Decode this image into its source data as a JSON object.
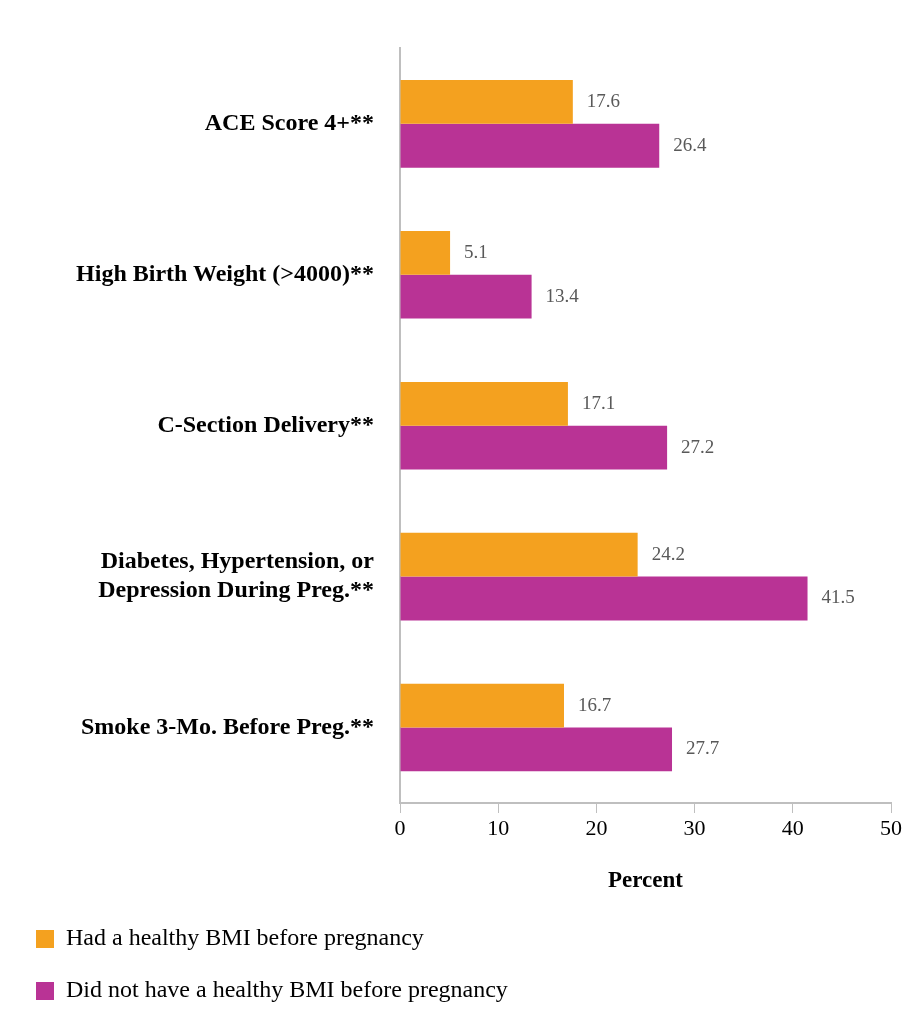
{
  "chart_data": {
    "type": "bar",
    "orientation": "horizontal",
    "xlabel": "Percent",
    "categories": [
      "ACE Score 4+**",
      "High Birth Weight (>4000)**",
      "C-Section Delivery**",
      "Diabetes, Hypertension, or Depression During Preg.**",
      "Smoke 3-Mo. Before Preg.**"
    ],
    "series": [
      {
        "name": "Had a healthy BMI before pregnancy",
        "color": "#f4a11f",
        "values": [
          17.6,
          5.1,
          17.1,
          24.2,
          16.7
        ]
      },
      {
        "name": "Did not have a healthy BMI before pregnancy",
        "color": "#b93395",
        "values": [
          26.4,
          13.4,
          27.2,
          41.5,
          27.7
        ]
      }
    ],
    "xlim": [
      0,
      50
    ],
    "xticks": [
      0,
      10,
      20,
      30,
      40,
      50
    ],
    "grid": false,
    "legend": "bottom",
    "data_labels": true
  }
}
